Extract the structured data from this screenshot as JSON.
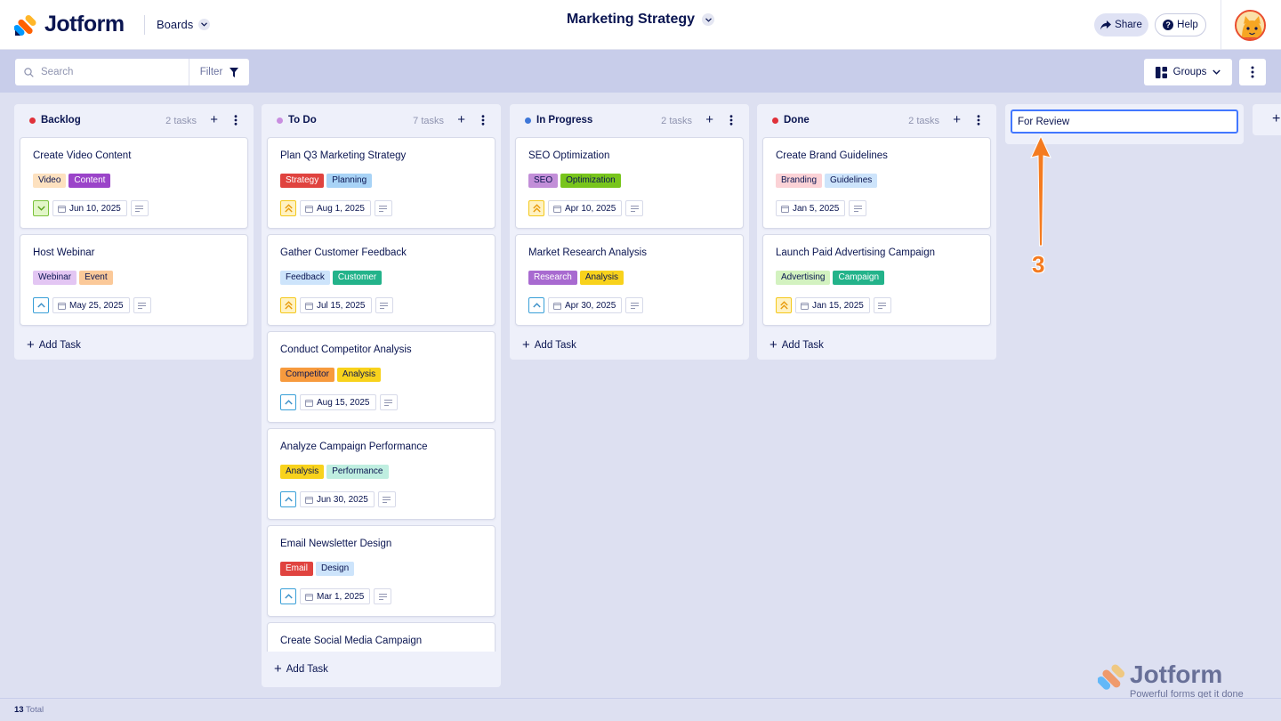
{
  "header": {
    "logo_text": "Jotform",
    "boards_label": "Boards",
    "board_title": "Marketing Strategy",
    "share_label": "Share",
    "help_label": "Help"
  },
  "toolbar": {
    "search_placeholder": "Search",
    "filter_label": "Filter",
    "groups_label": "Groups"
  },
  "columns": [
    {
      "title": "Backlog",
      "dot_color": "#e0313a",
      "count": "2 tasks",
      "add_task": "Add Task",
      "cards": [
        {
          "title": "Create Video Content",
          "tags": [
            {
              "label": "Video",
              "bg": "#fde1bf",
              "fg": "#0a1551"
            },
            {
              "label": "Content",
              "bg": "#9b44c9",
              "fg": "#ffffff"
            }
          ],
          "priority": "low",
          "date": "Jun 10, 2025"
        },
        {
          "title": "Host Webinar",
          "tags": [
            {
              "label": "Webinar",
              "bg": "#e3c6f3",
              "fg": "#0a1551"
            },
            {
              "label": "Event",
              "bg": "#fbc999",
              "fg": "#0a1551"
            }
          ],
          "priority": "medium",
          "date": "May 25, 2025"
        }
      ]
    },
    {
      "title": "To Do",
      "dot_color": "#c98ee0",
      "count": "7 tasks",
      "add_task": "Add Task",
      "cards": [
        {
          "title": "Plan Q3 Marketing Strategy",
          "tags": [
            {
              "label": "Strategy",
              "bg": "#e0433f",
              "fg": "#ffffff"
            },
            {
              "label": "Planning",
              "bg": "#a8d3f6",
              "fg": "#0a1551"
            }
          ],
          "priority": "high",
          "date": "Aug 1, 2025"
        },
        {
          "title": "Gather Customer Feedback",
          "tags": [
            {
              "label": "Feedback",
              "bg": "#cde4fb",
              "fg": "#0a1551"
            },
            {
              "label": "Customer",
              "bg": "#23b38a",
              "fg": "#ffffff"
            }
          ],
          "priority": "high",
          "date": "Jul 15, 2025"
        },
        {
          "title": "Conduct Competitor Analysis",
          "tags": [
            {
              "label": "Competitor",
              "bg": "#f79a3d",
              "fg": "#0a1551"
            },
            {
              "label": "Analysis",
              "bg": "#f8d21c",
              "fg": "#0a1551"
            }
          ],
          "priority": "medium",
          "date": "Aug 15, 2025"
        },
        {
          "title": "Analyze Campaign Performance",
          "tags": [
            {
              "label": "Analysis",
              "bg": "#f8d21c",
              "fg": "#0a1551"
            },
            {
              "label": "Performance",
              "bg": "#bfeee0",
              "fg": "#0a1551"
            }
          ],
          "priority": "medium",
          "date": "Jun 30, 2025"
        },
        {
          "title": "Email Newsletter Design",
          "tags": [
            {
              "label": "Email",
              "bg": "#e0433f",
              "fg": "#ffffff"
            },
            {
              "label": "Design",
              "bg": "#cde4fb",
              "fg": "#0a1551"
            }
          ],
          "priority": "medium",
          "date": "Mar 1, 2025"
        },
        {
          "title": "Create Social Media Campaign",
          "tags": [],
          "priority": "",
          "date": ""
        }
      ]
    },
    {
      "title": "In Progress",
      "dot_color": "#3e77d8",
      "count": "2 tasks",
      "add_task": "Add Task",
      "cards": [
        {
          "title": "SEO Optimization",
          "tags": [
            {
              "label": "SEO",
              "bg": "#c28ed8",
              "fg": "#0a1551"
            },
            {
              "label": "Optimization",
              "bg": "#78c51c",
              "fg": "#0a1551"
            }
          ],
          "priority": "high",
          "date": "Apr 10, 2025"
        },
        {
          "title": "Market Research Analysis",
          "tags": [
            {
              "label": "Research",
              "bg": "#a86ad0",
              "fg": "#ffffff"
            },
            {
              "label": "Analysis",
              "bg": "#f8d21c",
              "fg": "#0a1551"
            }
          ],
          "priority": "medium",
          "date": "Apr 30, 2025"
        }
      ]
    },
    {
      "title": "Done",
      "dot_color": "#e0313a",
      "count": "2 tasks",
      "add_task": "Add Task",
      "cards": [
        {
          "title": "Create Brand Guidelines",
          "tags": [
            {
              "label": "Branding",
              "bg": "#fbd2d6",
              "fg": "#0a1551"
            },
            {
              "label": "Guidelines",
              "bg": "#cde4fb",
              "fg": "#0a1551"
            }
          ],
          "priority": "none",
          "date": "Jan 5, 2025"
        },
        {
          "title": "Launch Paid Advertising Campaign",
          "tags": [
            {
              "label": "Advertising",
              "bg": "#d3f2c0",
              "fg": "#0a1551"
            },
            {
              "label": "Campaign",
              "bg": "#23b38a",
              "fg": "#ffffff"
            }
          ],
          "priority": "high",
          "date": "Jan 15, 2025"
        }
      ]
    }
  ],
  "new_column": {
    "value": "For Review"
  },
  "annotation": {
    "number": "3",
    "color": "#f47b20"
  },
  "footer": {
    "count": "13",
    "label": "Total"
  },
  "watermark": {
    "text": "Jotform",
    "tagline": "Powerful forms get it done"
  }
}
